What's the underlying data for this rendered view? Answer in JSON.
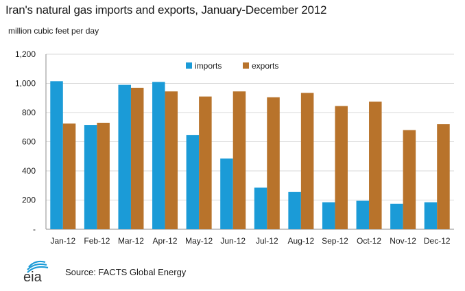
{
  "title": "Iran's natural gas imports and exports, January-December 2012",
  "subtitle": "million cubic feet per day",
  "source": "Source: FACTS Global Energy",
  "logo_text": "eia",
  "colors": {
    "imports": "#1B9BD7",
    "exports": "#B8732B",
    "grid": "#d9d9d9"
  },
  "chart_data": {
    "type": "bar",
    "title": "Iran's natural gas imports and exports, January-December 2012",
    "ylabel": "million cubic feet per day",
    "xlabel": "",
    "ylim": [
      0,
      1200
    ],
    "yticks": [
      0,
      200,
      400,
      600,
      800,
      1000,
      1200
    ],
    "ytick_labels": [
      "-",
      "200",
      "400",
      "600",
      "800",
      "1,000",
      "1,200"
    ],
    "grid": true,
    "legend_position": "top-center",
    "categories": [
      "Jan-12",
      "Feb-12",
      "Mar-12",
      "Apr-12",
      "May-12",
      "Jun-12",
      "Jul-12",
      "Aug-12",
      "Sep-12",
      "Oct-12",
      "Nov-12",
      "Dec-12"
    ],
    "series": [
      {
        "name": "imports",
        "values": [
          1015,
          715,
          990,
          1010,
          645,
          485,
          285,
          255,
          185,
          195,
          175,
          185
        ]
      },
      {
        "name": "exports",
        "values": [
          725,
          730,
          970,
          945,
          910,
          945,
          905,
          935,
          845,
          875,
          680,
          720
        ]
      }
    ]
  }
}
